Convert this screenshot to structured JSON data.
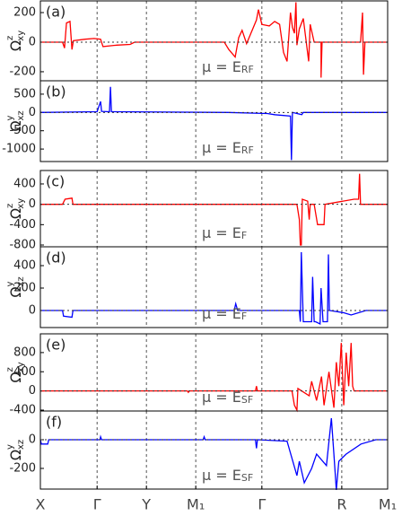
{
  "chart_data": [
    {
      "type": "line",
      "panel_label": "(a)",
      "ylabel": "Ω",
      "ylabel_sup": "z",
      "ylabel_sub": "xy",
      "annotation": "μ = E",
      "annotation_sub": "RF",
      "xlim": [
        0,
        7.04
      ],
      "ylim": [
        -261,
        279
      ],
      "yticks": [
        -200,
        0,
        200
      ],
      "zero_line": true,
      "series": [
        {
          "color": "#ff0000",
          "x": [
            0,
            0.45,
            0.49,
            0.53,
            0.6,
            0.64,
            0.67,
            0.91,
            1.09,
            1.22,
            1.27,
            1.55,
            1.82,
            1.91,
            3.73,
            3.82,
            3.95,
            4.02,
            4.09,
            4.18,
            4.38,
            4.42,
            4.49,
            4.64,
            4.75,
            4.85,
            4.93,
            5.0,
            5.07,
            5.11,
            5.15,
            5.18,
            5.2,
            5.25,
            5.33,
            5.44,
            5.47,
            5.55,
            5.69,
            5.69,
            5.71,
            6.49,
            6.53,
            6.55,
            6.58,
            7.04
          ],
          "values": [
            0,
            0,
            -40,
            130,
            140,
            -50,
            10,
            20,
            25,
            20,
            -30,
            -20,
            -15,
            0,
            0,
            -50,
            -100,
            30,
            80,
            -10,
            150,
            220,
            120,
            110,
            140,
            120,
            -70,
            -130,
            200,
            100,
            60,
            270,
            -20,
            90,
            160,
            -130,
            120,
            0,
            0,
            -240,
            0,
            0,
            200,
            -220,
            0,
            0
          ]
        }
      ]
    },
    {
      "type": "line",
      "panel_label": "(b)",
      "ylabel": "Ω",
      "ylabel_sup": "y",
      "ylabel_sub": "xz",
      "annotation": "μ = E",
      "annotation_sub": "RF",
      "xlim": [
        0,
        7.04
      ],
      "ylim": [
        -1341,
        866
      ],
      "yticks": [
        -1000,
        -500,
        0,
        500
      ],
      "zero_line": true,
      "series": [
        {
          "color": "#0000ff",
          "x": [
            0,
            1.15,
            1.22,
            1.24,
            1.4,
            1.42,
            1.44,
            3.8,
            4.6,
            4.75,
            5.07,
            5.09,
            5.11,
            5.3,
            5.33,
            5.6,
            7.04
          ],
          "values": [
            0,
            20,
            300,
            30,
            20,
            700,
            20,
            0,
            -30,
            -60,
            -100,
            -1300,
            0,
            -60,
            0,
            0,
            0
          ]
        }
      ]
    },
    {
      "type": "line",
      "panel_label": "(c)",
      "ylabel": "Ω",
      "ylabel_sup": "z",
      "ylabel_sub": "xy",
      "annotation": "μ = E",
      "annotation_sub": "F",
      "xlim": [
        0,
        7.04
      ],
      "ylim": [
        -835,
        664
      ],
      "yticks": [
        -800,
        -400,
        0,
        400
      ],
      "zero_line": true,
      "series": [
        {
          "color": "#ff0000",
          "x": [
            0,
            0.45,
            0.5,
            0.64,
            0.66,
            5.2,
            5.25,
            5.27,
            5.29,
            5.31,
            5.42,
            5.45,
            5.47,
            5.55,
            5.62,
            5.75,
            5.77,
            6.36,
            6.45,
            6.47,
            6.49,
            7.04
          ],
          "values": [
            0,
            0,
            100,
            120,
            0,
            0,
            -300,
            -800,
            -800,
            100,
            60,
            -300,
            0,
            0,
            -400,
            -400,
            0,
            100,
            100,
            600,
            0,
            0
          ]
        }
      ]
    },
    {
      "type": "line",
      "panel_label": "(d)",
      "ylabel": "Ω",
      "ylabel_sup": "y",
      "ylabel_sub": "xz",
      "annotation": "μ = E",
      "annotation_sub": "F",
      "xlim": [
        0,
        7.04
      ],
      "ylim": [
        -152,
        568
      ],
      "yticks": [
        0,
        200,
        400
      ],
      "zero_line": true,
      "series": [
        {
          "color": "#0000ff",
          "x": [
            0,
            0.45,
            0.47,
            0.64,
            0.66,
            3.93,
            3.96,
            4.0,
            5.25,
            5.27,
            5.29,
            5.33,
            5.5,
            5.52,
            5.55,
            5.58,
            5.67,
            5.69,
            5.73,
            5.82,
            5.84,
            5.86,
            6.15,
            6.3,
            6.6,
            7.04
          ],
          "values": [
            0,
            0,
            -50,
            -60,
            0,
            0,
            60,
            0,
            0,
            -100,
            520,
            -100,
            -100,
            300,
            -100,
            -100,
            -120,
            200,
            -100,
            -100,
            500,
            0,
            -20,
            -40,
            0,
            0
          ]
        }
      ]
    },
    {
      "type": "line",
      "panel_label": "(e)",
      "ylabel": "Ω",
      "ylabel_sup": "z",
      "ylabel_sub": "xy",
      "annotation": "μ = E",
      "annotation_sub": "SF",
      "xlim": [
        0,
        7.04
      ],
      "ylim": [
        -419,
        1191
      ],
      "yticks": [
        -400,
        0,
        400,
        800
      ],
      "zero_line": true,
      "series": [
        {
          "color": "#ff0000",
          "x": [
            0,
            2.98,
            3.0,
            3.02,
            4.36,
            4.38,
            4.4,
            5.1,
            5.15,
            5.2,
            5.22,
            5.45,
            5.5,
            5.6,
            5.7,
            5.75,
            5.85,
            5.95,
            6.0,
            6.05,
            6.1,
            6.15,
            6.2,
            6.25,
            6.3,
            6.33,
            6.36,
            7.04
          ],
          "values": [
            0,
            0,
            -30,
            0,
            0,
            100,
            0,
            0,
            -300,
            -400,
            50,
            -100,
            200,
            -200,
            300,
            -300,
            400,
            -350,
            600,
            100,
            1000,
            -300,
            800,
            100,
            1000,
            100,
            0,
            0
          ]
        }
      ]
    },
    {
      "type": "line",
      "panel_label": "(f)",
      "ylabel": "Ω",
      "ylabel_sup": "y",
      "ylabel_sub": "xz",
      "annotation": "μ = E",
      "annotation_sub": "SF",
      "xlim": [
        0,
        7.04
      ],
      "ylim": [
        -344,
        200
      ],
      "yticks": [
        -200,
        0
      ],
      "zero_line": true,
      "xticks": [
        {
          "value": 0,
          "label": "X"
        },
        {
          "value": 1.15,
          "label": "Γ"
        },
        {
          "value": 2.15,
          "label": "Y"
        },
        {
          "value": 3.15,
          "label": "M₁"
        },
        {
          "value": 4.49,
          "label": "Γ"
        },
        {
          "value": 6.11,
          "label": "R"
        },
        {
          "value": 7.04,
          "label": "M₁"
        }
      ],
      "series": [
        {
          "color": "#0000ff",
          "x": [
            0,
            0.02,
            0.15,
            0.17,
            1.21,
            1.22,
            1.24,
            3.3,
            3.32,
            3.34,
            4.36,
            4.38,
            4.4,
            5.0,
            5.2,
            5.25,
            5.35,
            5.5,
            5.6,
            5.8,
            5.9,
            5.95,
            6.0,
            6.05,
            6.2,
            6.5,
            6.8,
            7.04
          ],
          "values": [
            0,
            -30,
            -30,
            0,
            0,
            20,
            0,
            0,
            20,
            0,
            0,
            -60,
            0,
            -10,
            -250,
            -150,
            -300,
            -200,
            -100,
            -180,
            150,
            -100,
            -350,
            -150,
            -100,
            -30,
            0,
            0
          ]
        }
      ]
    }
  ]
}
